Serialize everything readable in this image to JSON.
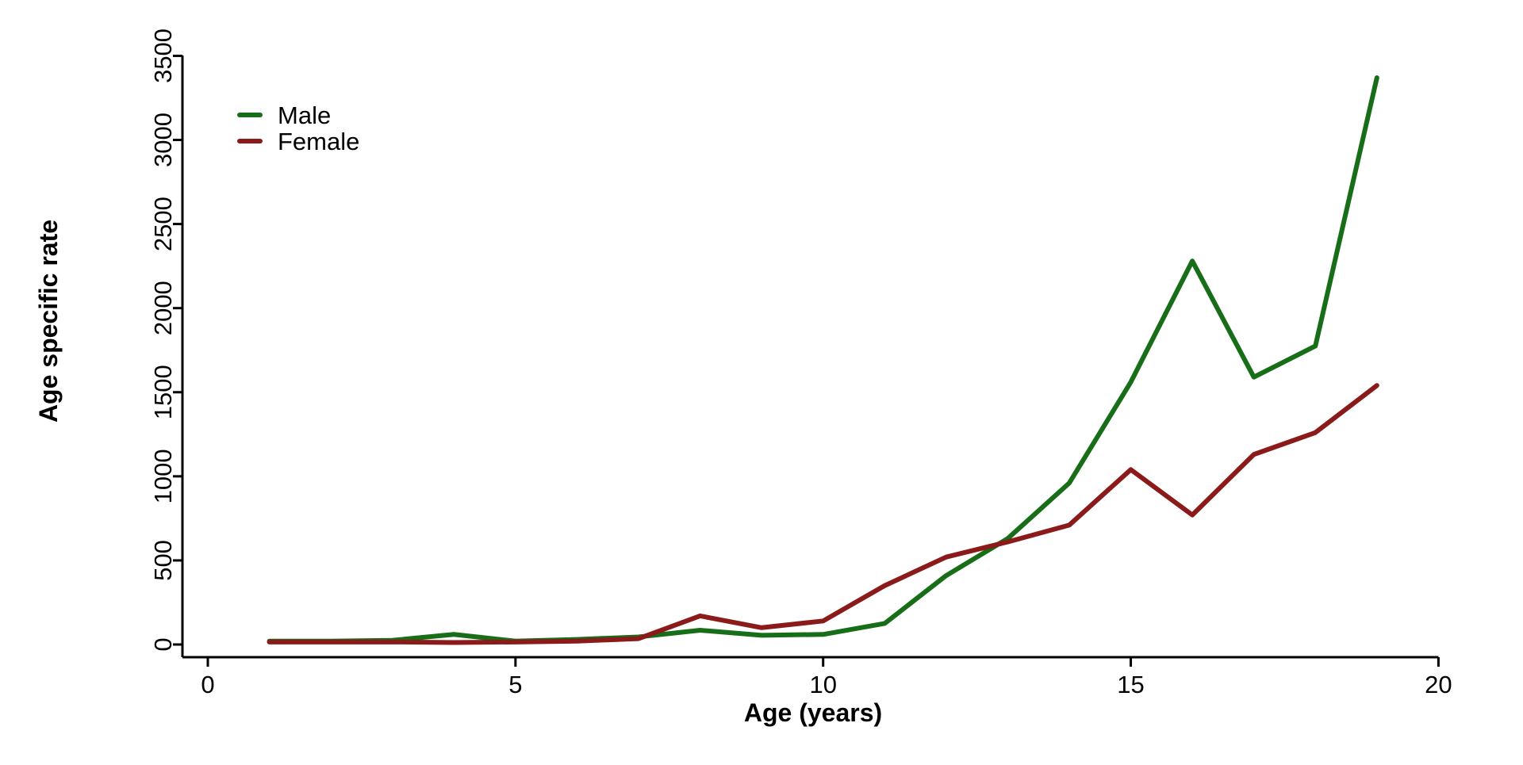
{
  "chart_data": {
    "type": "line",
    "title": "",
    "xlabel": "Age (years)",
    "ylabel": "Age specific rate",
    "xlim": [
      0,
      20
    ],
    "ylim": [
      0,
      3500
    ],
    "xticks": [
      0,
      5,
      10,
      15,
      20
    ],
    "yticks": [
      0,
      500,
      1000,
      1500,
      2000,
      2500,
      3000,
      3500
    ],
    "grid": false,
    "legend_position": "top-left",
    "x": [
      1,
      2,
      3,
      4,
      5,
      6,
      7,
      8,
      9,
      10,
      11,
      12,
      13,
      14,
      15,
      16,
      17,
      18,
      19
    ],
    "series": [
      {
        "name": "Male",
        "color": "#186e18",
        "values": [
          20,
          20,
          25,
          60,
          20,
          30,
          45,
          85,
          55,
          60,
          125,
          410,
          630,
          960,
          1560,
          2280,
          1590,
          1775,
          3370
        ]
      },
      {
        "name": "Female",
        "color": "#8b1a1a",
        "values": [
          15,
          15,
          15,
          12,
          15,
          20,
          35,
          170,
          100,
          140,
          350,
          520,
          610,
          710,
          1040,
          770,
          1130,
          1260,
          1540
        ]
      }
    ],
    "axis_color": "#000000",
    "background_color": "#ffffff"
  }
}
